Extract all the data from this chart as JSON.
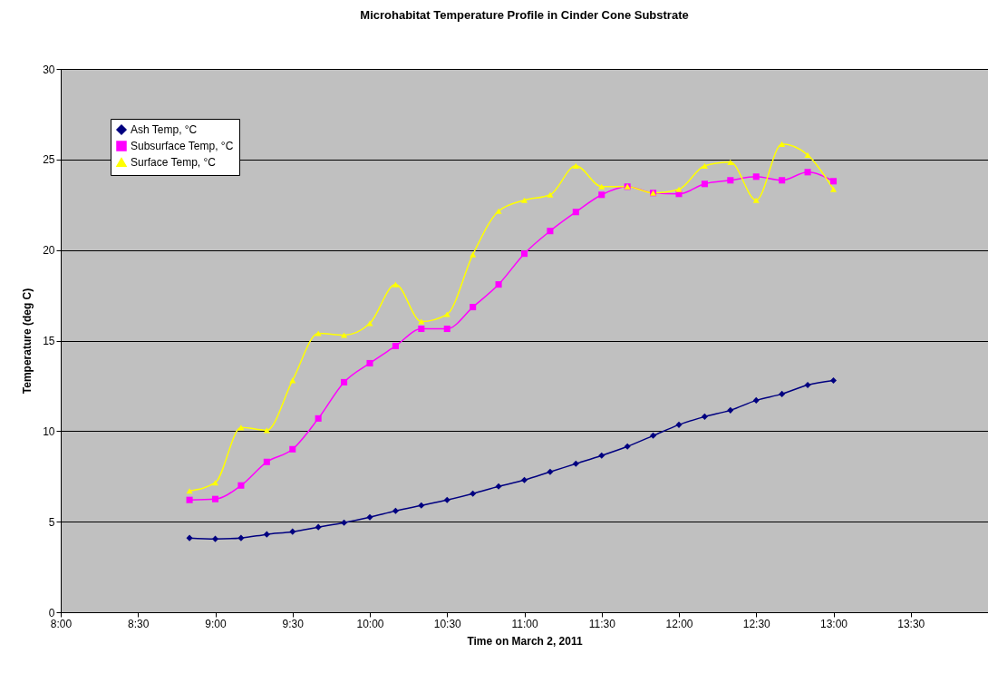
{
  "chart_data": {
    "type": "line",
    "title": "Microhabitat Temperature Profile in Cinder Cone Substrate",
    "xlabel": "Time on March 2, 2011",
    "ylabel": "Temperature (deg C)",
    "x": [
      8.8333,
      9,
      9.1667,
      9.3333,
      9.5,
      9.6667,
      9.8333,
      10,
      10.1667,
      10.3333,
      10.5,
      10.6667,
      10.8333,
      11,
      11.1667,
      11.3333,
      11.5,
      11.6667,
      11.8333,
      12,
      12.1667,
      12.3333,
      12.5,
      12.6667,
      12.8333,
      13
    ],
    "series": [
      {
        "name": "Ash Temp, °C",
        "color": "#000080",
        "marker": "diamond",
        "values": [
          4.1,
          4.05,
          4.1,
          4.3,
          4.45,
          4.7,
          4.95,
          5.25,
          5.6,
          5.9,
          6.2,
          6.55,
          6.95,
          7.3,
          7.75,
          8.2,
          8.65,
          9.15,
          9.75,
          10.35,
          10.8,
          11.15,
          11.7,
          12.05,
          12.55,
          12.8
        ]
      },
      {
        "name": "Subsurface Temp, °C",
        "color": "#ff00ff",
        "marker": "square",
        "values": [
          6.2,
          6.25,
          7.0,
          8.3,
          9.0,
          10.7,
          12.7,
          13.75,
          14.7,
          15.65,
          15.65,
          16.85,
          18.1,
          19.8,
          21.05,
          22.1,
          23.05,
          23.5,
          23.15,
          23.1,
          23.65,
          23.85,
          24.05,
          23.85,
          24.3,
          23.8
        ]
      },
      {
        "name": "Surface Temp, °C",
        "color": "#ffff00",
        "marker": "triangle",
        "values": [
          6.7,
          7.15,
          10.2,
          10.05,
          12.8,
          15.4,
          15.3,
          15.95,
          18.1,
          16.05,
          16.45,
          19.75,
          22.15,
          22.75,
          23.05,
          24.65,
          23.5,
          23.5,
          23.15,
          23.35,
          24.65,
          24.85,
          22.75,
          25.85,
          25.25,
          23.35
        ]
      }
    ],
    "xlim": [
      8,
      14
    ],
    "xticks": [
      {
        "value": 8,
        "label": "8:00"
      },
      {
        "value": 8.5,
        "label": "8:30"
      },
      {
        "value": 9,
        "label": "9:00"
      },
      {
        "value": 9.5,
        "label": "9:30"
      },
      {
        "value": 10,
        "label": "10:00"
      },
      {
        "value": 10.5,
        "label": "10:30"
      },
      {
        "value": 11,
        "label": "11:00"
      },
      {
        "value": 11.5,
        "label": "11:30"
      },
      {
        "value": 12,
        "label": "12:00"
      },
      {
        "value": 12.5,
        "label": "12:30"
      },
      {
        "value": 13,
        "label": "13:00"
      },
      {
        "value": 13.5,
        "label": "13:30"
      }
    ],
    "ylim": [
      0,
      30
    ],
    "yticks": [
      0,
      5,
      10,
      15,
      20,
      25,
      30
    ],
    "grid": "y",
    "legend": "top left",
    "line_style": "solid"
  }
}
